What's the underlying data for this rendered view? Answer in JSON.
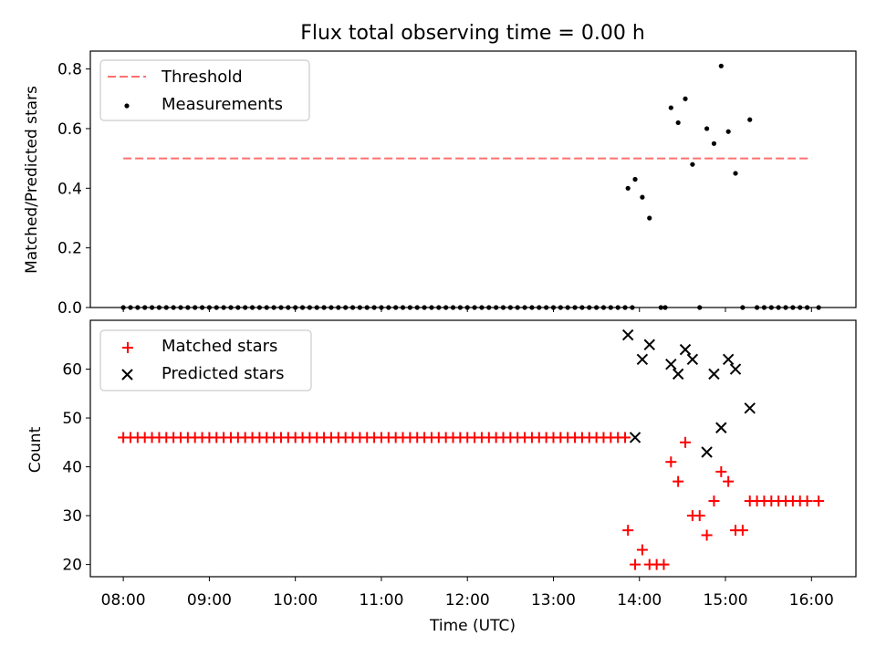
{
  "chart_data": [
    {
      "type": "scatter",
      "title": "Flux total observing time = 0.00 h",
      "xlabel": "",
      "ylabel": "Matched/Predicted stars",
      "ylim": [
        0,
        0.86
      ],
      "yticks": [
        "0.0",
        "0.2",
        "0.4",
        "0.6",
        "0.8"
      ],
      "ytick_values": [
        0,
        0.2,
        0.4,
        0.6,
        0.8
      ],
      "xlim": [
        "07:37",
        "16:31"
      ],
      "legend": {
        "placement": "top-left",
        "labels": [
          "Threshold",
          "Measurements"
        ]
      },
      "threshold": {
        "name": "Threshold",
        "value": 0.5,
        "x_range": [
          "08:00",
          "16:00"
        ],
        "color": "#ff6f6f"
      },
      "series": [
        {
          "name": "Measurements",
          "color": "#000000",
          "points": [
            [
              "08:00",
              0
            ],
            [
              "08:05",
              0
            ],
            [
              "08:10",
              0
            ],
            [
              "08:15",
              0
            ],
            [
              "08:20",
              0
            ],
            [
              "08:25",
              0
            ],
            [
              "08:30",
              0
            ],
            [
              "08:35",
              0
            ],
            [
              "08:40",
              0
            ],
            [
              "08:45",
              0
            ],
            [
              "08:50",
              0
            ],
            [
              "08:55",
              0
            ],
            [
              "09:00",
              0
            ],
            [
              "09:05",
              0
            ],
            [
              "09:10",
              0
            ],
            [
              "09:15",
              0
            ],
            [
              "09:20",
              0
            ],
            [
              "09:25",
              0
            ],
            [
              "09:30",
              0
            ],
            [
              "09:35",
              0
            ],
            [
              "09:40",
              0
            ],
            [
              "09:45",
              0
            ],
            [
              "09:50",
              0
            ],
            [
              "09:55",
              0
            ],
            [
              "10:00",
              0
            ],
            [
              "10:05",
              0
            ],
            [
              "10:10",
              0
            ],
            [
              "10:15",
              0
            ],
            [
              "10:20",
              0
            ],
            [
              "10:25",
              0
            ],
            [
              "10:30",
              0
            ],
            [
              "10:35",
              0
            ],
            [
              "10:40",
              0
            ],
            [
              "10:45",
              0
            ],
            [
              "10:50",
              0
            ],
            [
              "10:55",
              0
            ],
            [
              "11:00",
              0
            ],
            [
              "11:05",
              0
            ],
            [
              "11:10",
              0
            ],
            [
              "11:15",
              0
            ],
            [
              "11:20",
              0
            ],
            [
              "11:25",
              0
            ],
            [
              "11:30",
              0
            ],
            [
              "11:35",
              0
            ],
            [
              "11:40",
              0
            ],
            [
              "11:45",
              0
            ],
            [
              "11:50",
              0
            ],
            [
              "11:55",
              0
            ],
            [
              "12:00",
              0
            ],
            [
              "12:05",
              0
            ],
            [
              "12:10",
              0
            ],
            [
              "12:15",
              0
            ],
            [
              "12:20",
              0
            ],
            [
              "12:25",
              0
            ],
            [
              "12:30",
              0
            ],
            [
              "12:35",
              0
            ],
            [
              "12:40",
              0
            ],
            [
              "12:45",
              0
            ],
            [
              "12:50",
              0
            ],
            [
              "12:55",
              0
            ],
            [
              "13:00",
              0
            ],
            [
              "13:05",
              0
            ],
            [
              "13:10",
              0
            ],
            [
              "13:15",
              0
            ],
            [
              "13:20",
              0
            ],
            [
              "13:25",
              0
            ],
            [
              "13:30",
              0
            ],
            [
              "13:35",
              0
            ],
            [
              "13:40",
              0
            ],
            [
              "13:45",
              0
            ],
            [
              "13:50",
              0
            ],
            [
              "13:55",
              0
            ],
            [
              "13:52",
              0.4
            ],
            [
              "13:57",
              0.43
            ],
            [
              "14:02",
              0.37
            ],
            [
              "14:07",
              0.3
            ],
            [
              "14:15",
              0
            ],
            [
              "14:18",
              0
            ],
            [
              "14:22",
              0.67
            ],
            [
              "14:27",
              0.62
            ],
            [
              "14:32",
              0.7
            ],
            [
              "14:37",
              0.48
            ],
            [
              "14:42",
              0
            ],
            [
              "14:47",
              0.6
            ],
            [
              "14:52",
              0.55
            ],
            [
              "14:57",
              0.81
            ],
            [
              "15:02",
              0.59
            ],
            [
              "15:07",
              0.45
            ],
            [
              "15:12",
              0
            ],
            [
              "15:17",
              0.63
            ],
            [
              "15:22",
              0
            ],
            [
              "15:27",
              0
            ],
            [
              "15:32",
              0
            ],
            [
              "15:37",
              0
            ],
            [
              "15:42",
              0
            ],
            [
              "15:47",
              0
            ],
            [
              "15:52",
              0
            ],
            [
              "15:57",
              0
            ],
            [
              "16:05",
              0
            ]
          ]
        }
      ]
    },
    {
      "type": "scatter",
      "title": "",
      "xlabel": "Time (UTC)",
      "ylabel": "Count",
      "ylim": [
        17.5,
        70
      ],
      "yticks": [
        "20",
        "30",
        "40",
        "50",
        "60"
      ],
      "ytick_values": [
        20,
        30,
        40,
        50,
        60
      ],
      "xticks": [
        "08:00",
        "09:00",
        "10:00",
        "11:00",
        "12:00",
        "13:00",
        "14:00",
        "15:00",
        "16:00"
      ],
      "xlim": [
        "07:37",
        "16:31"
      ],
      "legend": {
        "placement": "top-left",
        "labels": [
          "Matched stars",
          "Predicted stars"
        ]
      },
      "series": [
        {
          "name": "Matched stars",
          "marker": "+",
          "color": "#ff0000",
          "points": [
            [
              "08:00",
              46
            ],
            [
              "08:05",
              46
            ],
            [
              "08:10",
              46
            ],
            [
              "08:15",
              46
            ],
            [
              "08:20",
              46
            ],
            [
              "08:25",
              46
            ],
            [
              "08:30",
              46
            ],
            [
              "08:35",
              46
            ],
            [
              "08:40",
              46
            ],
            [
              "08:45",
              46
            ],
            [
              "08:50",
              46
            ],
            [
              "08:55",
              46
            ],
            [
              "09:00",
              46
            ],
            [
              "09:05",
              46
            ],
            [
              "09:10",
              46
            ],
            [
              "09:15",
              46
            ],
            [
              "09:20",
              46
            ],
            [
              "09:25",
              46
            ],
            [
              "09:30",
              46
            ],
            [
              "09:35",
              46
            ],
            [
              "09:40",
              46
            ],
            [
              "09:45",
              46
            ],
            [
              "09:50",
              46
            ],
            [
              "09:55",
              46
            ],
            [
              "10:00",
              46
            ],
            [
              "10:05",
              46
            ],
            [
              "10:10",
              46
            ],
            [
              "10:15",
              46
            ],
            [
              "10:20",
              46
            ],
            [
              "10:25",
              46
            ],
            [
              "10:30",
              46
            ],
            [
              "10:35",
              46
            ],
            [
              "10:40",
              46
            ],
            [
              "10:45",
              46
            ],
            [
              "10:50",
              46
            ],
            [
              "10:55",
              46
            ],
            [
              "11:00",
              46
            ],
            [
              "11:05",
              46
            ],
            [
              "11:10",
              46
            ],
            [
              "11:15",
              46
            ],
            [
              "11:20",
              46
            ],
            [
              "11:25",
              46
            ],
            [
              "11:30",
              46
            ],
            [
              "11:35",
              46
            ],
            [
              "11:40",
              46
            ],
            [
              "11:45",
              46
            ],
            [
              "11:50",
              46
            ],
            [
              "11:55",
              46
            ],
            [
              "12:00",
              46
            ],
            [
              "12:05",
              46
            ],
            [
              "12:10",
              46
            ],
            [
              "12:15",
              46
            ],
            [
              "12:20",
              46
            ],
            [
              "12:25",
              46
            ],
            [
              "12:30",
              46
            ],
            [
              "12:35",
              46
            ],
            [
              "12:40",
              46
            ],
            [
              "12:45",
              46
            ],
            [
              "12:50",
              46
            ],
            [
              "12:55",
              46
            ],
            [
              "13:00",
              46
            ],
            [
              "13:05",
              46
            ],
            [
              "13:10",
              46
            ],
            [
              "13:15",
              46
            ],
            [
              "13:20",
              46
            ],
            [
              "13:25",
              46
            ],
            [
              "13:30",
              46
            ],
            [
              "13:35",
              46
            ],
            [
              "13:40",
              46
            ],
            [
              "13:45",
              46
            ],
            [
              "13:50",
              46
            ],
            [
              "13:52",
              27
            ],
            [
              "13:57",
              20
            ],
            [
              "14:02",
              23
            ],
            [
              "14:07",
              20
            ],
            [
              "14:12",
              20
            ],
            [
              "14:17",
              20
            ],
            [
              "14:22",
              41
            ],
            [
              "14:27",
              37
            ],
            [
              "14:32",
              45
            ],
            [
              "14:37",
              30
            ],
            [
              "14:42",
              30
            ],
            [
              "14:47",
              26
            ],
            [
              "14:52",
              33
            ],
            [
              "14:57",
              39
            ],
            [
              "15:02",
              37
            ],
            [
              "15:07",
              27
            ],
            [
              "15:12",
              27
            ],
            [
              "15:17",
              33
            ],
            [
              "15:22",
              33
            ],
            [
              "15:27",
              33
            ],
            [
              "15:32",
              33
            ],
            [
              "15:37",
              33
            ],
            [
              "15:42",
              33
            ],
            [
              "15:47",
              33
            ],
            [
              "15:52",
              33
            ],
            [
              "15:57",
              33
            ],
            [
              "16:05",
              33
            ]
          ]
        },
        {
          "name": "Predicted stars",
          "marker": "x",
          "color": "#000000",
          "points": [
            [
              "13:52",
              67
            ],
            [
              "13:57",
              46
            ],
            [
              "14:02",
              62
            ],
            [
              "14:07",
              65
            ],
            [
              "14:22",
              61
            ],
            [
              "14:27",
              59
            ],
            [
              "14:32",
              64
            ],
            [
              "14:37",
              62
            ],
            [
              "14:47",
              43
            ],
            [
              "14:52",
              59
            ],
            [
              "14:57",
              48
            ],
            [
              "15:02",
              62
            ],
            [
              "15:07",
              60
            ],
            [
              "15:17",
              52
            ]
          ]
        }
      ]
    }
  ]
}
